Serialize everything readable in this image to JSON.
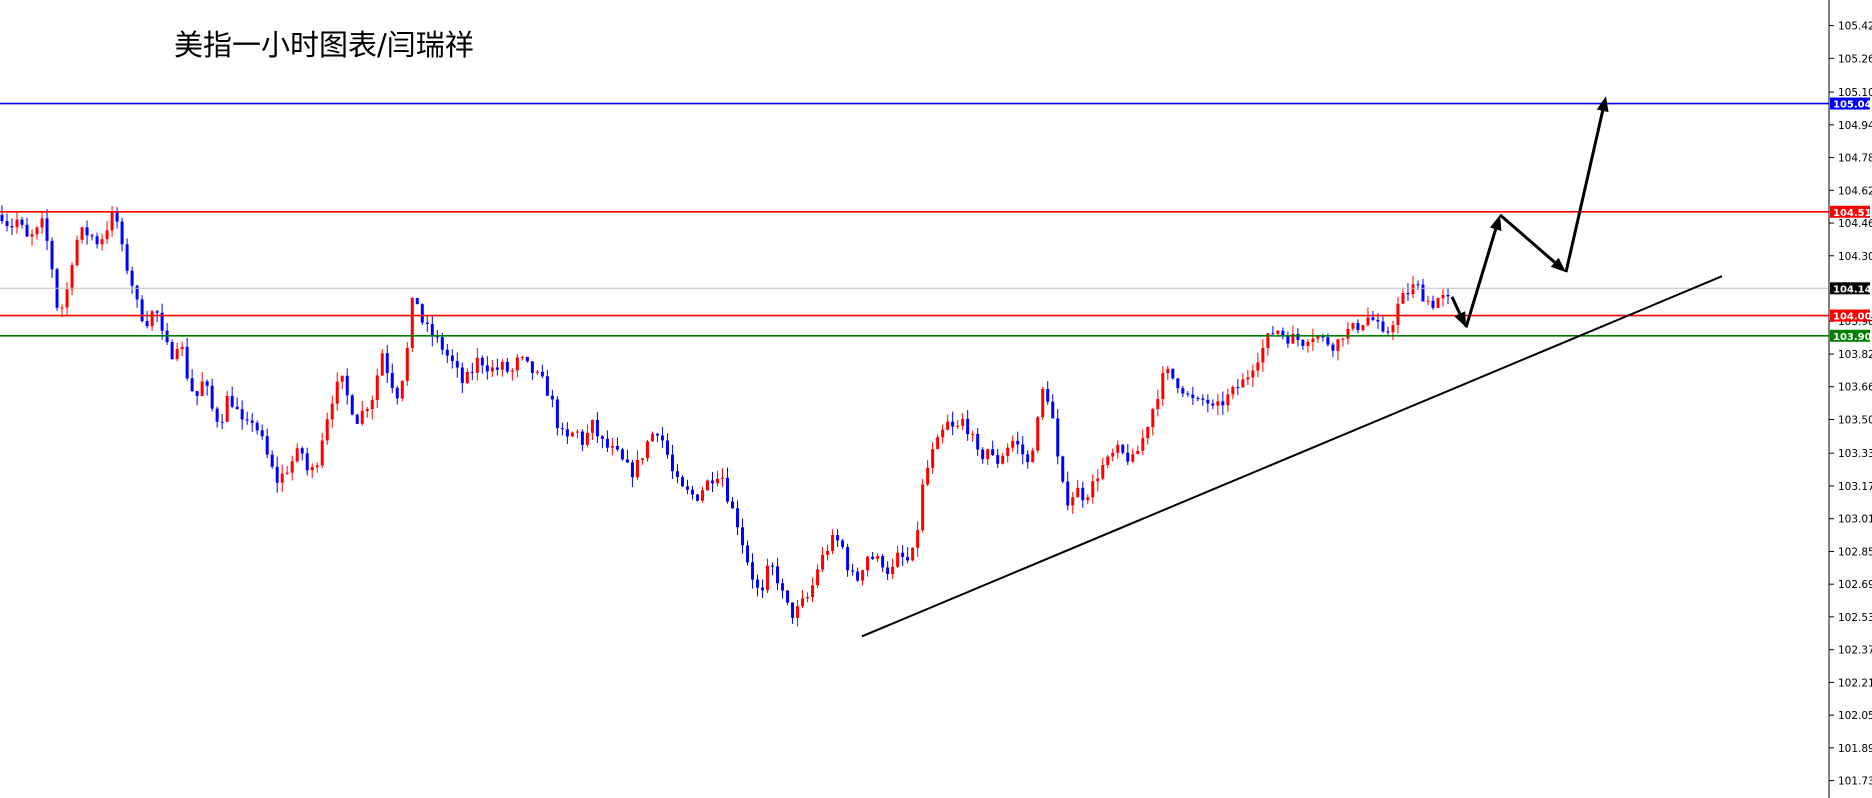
{
  "page": {
    "title": "美指一小时图表/闫瑞祥"
  },
  "chart_data": {
    "type": "candlestick",
    "title": "美指一小时图表/闫瑞祥",
    "ylim": [
      101.65,
      105.55
    ],
    "y_ticks": [
      "105.425",
      "105.265",
      "105.100",
      "104.940",
      "104.780",
      "104.620",
      "104.460",
      "104.300",
      "103.980",
      "103.820",
      "103.660",
      "103.500",
      "103.335",
      "103.175",
      "103.015",
      "102.855",
      "102.695",
      "102.535",
      "102.375",
      "102.215",
      "102.055",
      "101.895",
      "101.735"
    ],
    "grid": false,
    "colors": {
      "up": "#ff0000",
      "down": "#0000ff",
      "trendline": "#000000",
      "current": "#c0c0c0"
    },
    "horizontal_lines": [
      {
        "price": 105.044,
        "label": "105.044",
        "color": "#0000ff"
      },
      {
        "price": 104.515,
        "label": "104.515",
        "color": "#ff0000"
      },
      {
        "price": 104.141,
        "label": "104.141",
        "color": "#000000",
        "line_color": "#c0c0c0"
      },
      {
        "price": 104.008,
        "label": "104.008",
        "color": "#ff0000"
      },
      {
        "price": 103.909,
        "label": "103.909",
        "color": "#008000"
      }
    ],
    "trendline": [
      {
        "x": 0,
        "y": 102.44
      },
      {
        "x": 1,
        "y": 104.2
      }
    ],
    "projection_path": [
      104.1,
      103.95,
      104.5,
      104.22,
      105.08
    ],
    "price_path": [
      104.5,
      104.44,
      104.48,
      104.38,
      104.4,
      104.46,
      104.3,
      104.0,
      104.12,
      104.36,
      104.42,
      104.4,
      104.36,
      104.44,
      104.52,
      104.3,
      104.18,
      104.02,
      103.98,
      104.05,
      103.88,
      103.82,
      103.9,
      103.7,
      103.6,
      103.7,
      103.55,
      103.48,
      103.62,
      103.55,
      103.45,
      103.5,
      103.42,
      103.3,
      103.2,
      103.24,
      103.3,
      103.36,
      103.22,
      103.3,
      103.48,
      103.62,
      103.7,
      103.58,
      103.5,
      103.56,
      103.62,
      103.84,
      103.7,
      103.62,
      103.78,
      104.14,
      103.98,
      103.92,
      103.88,
      103.82,
      103.76,
      103.68,
      103.72,
      103.8,
      103.76,
      103.74,
      103.76,
      103.72,
      103.8,
      103.76,
      103.72,
      103.68,
      103.6,
      103.44,
      103.4,
      103.45,
      103.38,
      103.48,
      103.4,
      103.36,
      103.34,
      103.28,
      103.24,
      103.3,
      103.4,
      103.46,
      103.38,
      103.24,
      103.16,
      103.14,
      103.12,
      103.18,
      103.22,
      103.25,
      103.1,
      103.0,
      102.85,
      102.72,
      102.62,
      102.8,
      102.72,
      102.6,
      102.54,
      102.6,
      102.64,
      102.78,
      102.86,
      102.92,
      102.88,
      102.74,
      102.72,
      102.84,
      102.82,
      102.8,
      102.74,
      102.84,
      102.8,
      102.86,
      103.18,
      103.32,
      103.4,
      103.48,
      103.44,
      103.5,
      103.42,
      103.3,
      103.36,
      103.28,
      103.34,
      103.4,
      103.36,
      103.28,
      103.44,
      103.68,
      103.52,
      103.2,
      103.1,
      103.16,
      103.12,
      103.18,
      103.26,
      103.3,
      103.35,
      103.32,
      103.3,
      103.38,
      103.5,
      103.62,
      103.74,
      103.7,
      103.66,
      103.6,
      103.58,
      103.6,
      103.54,
      103.58,
      103.62,
      103.66,
      103.7,
      103.78,
      103.84,
      103.92,
      103.94,
      103.9,
      103.9,
      103.88,
      103.92,
      103.9,
      103.88,
      103.86,
      103.92,
      103.94,
      103.96,
      104.0,
      103.98,
      103.9,
      103.96,
      104.08,
      104.12,
      104.16,
      104.1,
      104.06,
      104.1,
      104.08
    ]
  }
}
